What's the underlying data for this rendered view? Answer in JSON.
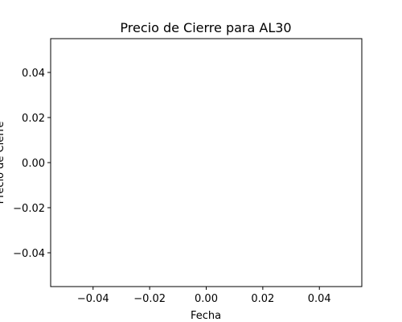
{
  "chart_data": {
    "type": "line",
    "title": "Precio de Cierre para AL30",
    "xlabel": "Fecha",
    "ylabel": "Precio de Cierre",
    "series": [],
    "xlim": [
      -0.055,
      0.055
    ],
    "ylim": [
      -0.055,
      0.055
    ],
    "xticks": [
      -0.04,
      -0.02,
      0.0,
      0.02,
      0.04
    ],
    "xtick_labels": [
      "−0.04",
      "−0.02",
      "0.00",
      "0.02",
      "0.04"
    ],
    "yticks": [
      0.04,
      0.02,
      0.0,
      -0.02,
      -0.04
    ],
    "ytick_labels": [
      "0.04",
      "0.02",
      "0.00",
      "−0.02",
      "−0.04"
    ],
    "grid": false,
    "legend": false
  }
}
